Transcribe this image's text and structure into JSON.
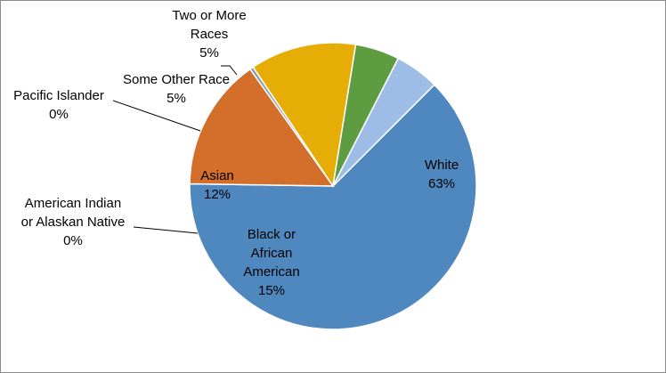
{
  "chart_data": {
    "type": "pie",
    "slices": [
      {
        "name": "White",
        "value": 63,
        "label": "63%",
        "color": "#4f87bf"
      },
      {
        "name": "Black or African American",
        "value": 15,
        "label": "15%",
        "color": "#d36e2b"
      },
      {
        "name": "American Indian or Alaskan Native",
        "value": 0.4,
        "label": "0%",
        "color": "#8a9bab"
      },
      {
        "name": "Asian",
        "value": 12,
        "label": "12%",
        "color": "#e6ad06"
      },
      {
        "name": "Pacific Islander",
        "value": 0,
        "label": "0%",
        "color": "#2f5f8f"
      },
      {
        "name": "Some Other Race",
        "value": 5,
        "label": "5%",
        "color": "#5e9c41"
      },
      {
        "name": "Two or More Races",
        "value": 5,
        "label": "5%",
        "color": "#9dbde6"
      }
    ],
    "legend": "none",
    "data_labels": "category name and percentage"
  }
}
